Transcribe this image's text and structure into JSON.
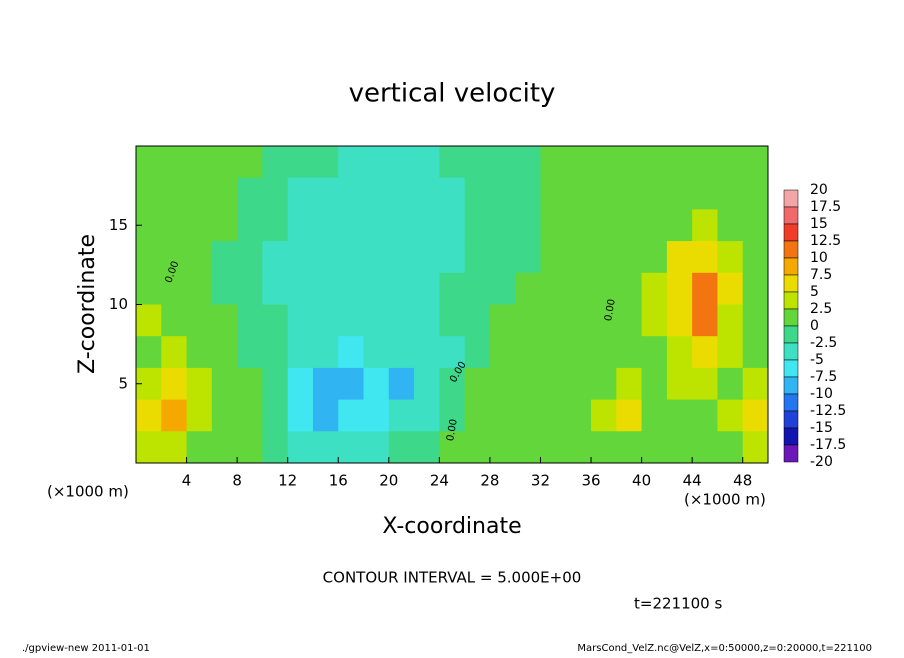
{
  "chart_data": {
    "type": "heatmap",
    "title": "vertical velocity",
    "x_label": "X-coordinate",
    "y_label": "Z-coordinate",
    "x_unit": "(×1000 m)",
    "contour_interval": "CONTOUR INTERVAL = 5.000E+00",
    "time_label": "t=221100 s",
    "footer_left": "./gpview-new  2011-01-01",
    "footer_right": "MarsCond_VelZ.nc@VelZ,x=0:50000,z=0:20000,t=221100",
    "xlim": [
      0,
      50
    ],
    "xticks": [
      4,
      8,
      12,
      16,
      20,
      24,
      28,
      32,
      36,
      40,
      44,
      48
    ],
    "ylim": [
      0,
      20
    ],
    "yticks": [
      5,
      10,
      15
    ],
    "x": [
      1,
      3,
      5,
      7,
      9,
      11,
      13,
      15,
      17,
      19,
      21,
      23,
      25,
      27,
      29,
      31,
      33,
      35,
      37,
      39,
      41,
      43,
      45,
      47,
      49
    ],
    "y": [
      19,
      17,
      15,
      13,
      11,
      9,
      7,
      5,
      3,
      1
    ],
    "z": [
      [
        1,
        1,
        1,
        1,
        1,
        -1,
        -2,
        -2,
        -3,
        -3,
        -3,
        -3,
        -2,
        -2,
        -1,
        -1,
        0,
        1,
        1,
        1,
        1,
        1,
        1,
        1,
        1
      ],
      [
        1,
        1,
        1,
        1,
        -1,
        -2,
        -3,
        -3,
        -3,
        -3,
        -3,
        -3,
        -3,
        -2,
        -2,
        -1,
        0,
        1,
        1,
        1,
        1,
        1,
        1,
        1,
        1
      ],
      [
        1,
        1,
        1,
        1,
        -1,
        -2,
        -3,
        -3,
        -3,
        -3,
        -3,
        -3,
        -3,
        -2,
        -2,
        -1,
        0,
        1,
        1,
        1,
        1,
        2,
        3,
        2,
        1
      ],
      [
        1,
        2,
        1,
        -1,
        -2,
        -3,
        -3,
        -3,
        -3,
        -3,
        -3,
        -3,
        -3,
        -2,
        -2,
        -1,
        0,
        1,
        1,
        1,
        2,
        5,
        6,
        4,
        1
      ],
      [
        2,
        2,
        1,
        -1,
        -2,
        -3,
        -3,
        -3,
        -3,
        -3,
        -3,
        -3,
        -2,
        -2,
        -1,
        0,
        0,
        1,
        1,
        1,
        3,
        7,
        11,
        5,
        2
      ],
      [
        3,
        2,
        1,
        0,
        -1,
        -2,
        -3,
        -3,
        -4,
        -4,
        -3,
        -3,
        -2,
        -1,
        0,
        0,
        0,
        1,
        1,
        1,
        3,
        6,
        10,
        4,
        2
      ],
      [
        2,
        3,
        2,
        0,
        -1,
        -2,
        -3,
        -5,
        -6,
        -5,
        -5,
        -4,
        -3,
        -1,
        0,
        1,
        0,
        0,
        1,
        1,
        2,
        4,
        6,
        3,
        2
      ],
      [
        4,
        6,
        3,
        1,
        0,
        -2,
        -6,
        -8,
        -9,
        -7,
        -8,
        -4,
        -2,
        0,
        1,
        1,
        1,
        1,
        2,
        4,
        2,
        3,
        4,
        2,
        4
      ],
      [
        5,
        9,
        4,
        1,
        1,
        -2,
        -7,
        -8,
        -6,
        -7,
        -5,
        -3,
        -1,
        0,
        1,
        1,
        1,
        1,
        3,
        5,
        2,
        1,
        2,
        3,
        5
      ],
      [
        3,
        4,
        2,
        1,
        1,
        -1,
        -4,
        -5,
        -4,
        -3,
        -2,
        -1,
        1,
        0,
        1,
        1,
        1,
        1,
        1,
        2,
        1,
        0,
        1,
        2,
        3
      ]
    ],
    "levels": [
      20,
      17.5,
      15,
      12.5,
      10,
      7.5,
      5,
      2.5,
      0,
      -2.5,
      -5,
      -7.5,
      -10,
      -12.5,
      -15,
      -17.5,
      -20
    ],
    "colors": [
      "#f4a6a6",
      "#f06a6a",
      "#f03c28",
      "#f27512",
      "#f5a800",
      "#eadc00",
      "#bde400",
      "#62d63a",
      "#3ed88a",
      "#3ee0c4",
      "#40e6f0",
      "#30b4f2",
      "#2476f0",
      "#2040d8",
      "#1414b0",
      "#6c18b8"
    ],
    "contour_labels": [
      {
        "value": 0,
        "label": "0.00"
      },
      {
        "value": 0,
        "label": "0.00"
      },
      {
        "value": 0,
        "label": "0.00"
      },
      {
        "value": 0,
        "label": "0.00"
      }
    ]
  }
}
